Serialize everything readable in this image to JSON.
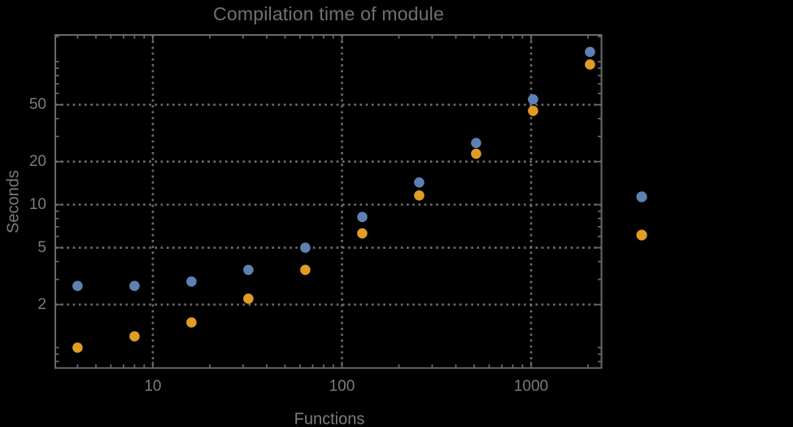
{
  "chart_data": {
    "type": "scatter",
    "title": "Compilation time of module",
    "xlabel": "Functions",
    "ylabel": "Seconds",
    "x_scale": "log",
    "y_scale": "log",
    "grid": "dotted lines at major ticks only",
    "xlim": [
      3.05,
      2355
    ],
    "ylim": [
      0.72,
      153.7
    ],
    "x": [
      4,
      8,
      16,
      32,
      64,
      128,
      256,
      512,
      1024,
      2048
    ],
    "series": [
      {
        "id": "series-1",
        "color": "#5e81b5",
        "y": [
          2.7,
          2.7,
          2.9,
          3.5,
          5.0,
          8.2,
          14.3,
          27,
          54.5,
          117
        ]
      },
      {
        "id": "series-2",
        "color": "#e19c24",
        "y": [
          1.0,
          1.2,
          1.5,
          2.2,
          3.5,
          6.3,
          11.6,
          22.7,
          45.3,
          95.5
        ]
      }
    ],
    "xticks": {
      "values": [
        10,
        100,
        1000
      ],
      "labels": [
        "10",
        "100",
        "1000"
      ],
      "minor": [
        4,
        5,
        6,
        7,
        8,
        9,
        20,
        30,
        40,
        50,
        60,
        70,
        80,
        90,
        200,
        300,
        400,
        500,
        600,
        700,
        800,
        900,
        2000
      ]
    },
    "yticks": {
      "values": [
        2,
        5,
        10,
        20,
        50
      ],
      "labels": [
        "2",
        "5",
        "10",
        "20",
        "50"
      ],
      "minor": [
        0.8,
        0.9,
        1,
        3,
        4,
        6,
        7,
        8,
        9,
        30,
        40,
        60,
        70,
        80,
        90,
        100,
        150
      ]
    },
    "legend": {
      "position": "outside-right",
      "entries": [
        {
          "marker_color": "#5e81b5",
          "label": ""
        },
        {
          "marker_color": "#e19c24",
          "label": ""
        }
      ]
    }
  },
  "colors": {
    "background": "#000000",
    "frame": "#6a6a6a",
    "gridline": "#808080",
    "tick_labels": "#7c7c7c",
    "title": "#717171",
    "series1": "#5e81b5",
    "series2": "#e19c24"
  }
}
